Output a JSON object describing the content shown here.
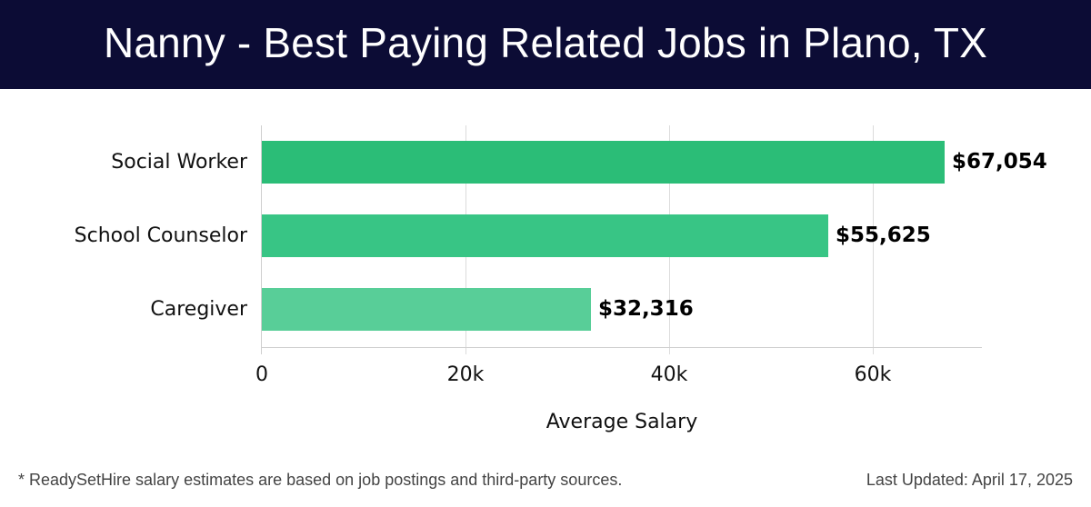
{
  "header": {
    "title": "Nanny - Best Paying Related Jobs in Plano, TX"
  },
  "footer": {
    "note": "* ReadySetHire salary estimates are based on job postings and third-party sources.",
    "updated": "Last Updated: April 17, 2025"
  },
  "colors": {
    "header_bg": "#0c0c35",
    "bar_1": "#2bbd77",
    "bar_2": "#38c585",
    "bar_3": "#58ce98"
  },
  "chart_data": {
    "type": "bar",
    "orientation": "horizontal",
    "title": "Nanny - Best Paying Related Jobs in Plano, TX",
    "categories": [
      "Social Worker",
      "School Counselor",
      "Caregiver"
    ],
    "values": [
      67054,
      55625,
      32316
    ],
    "value_labels": [
      "$67,054",
      "$55,625",
      "$32,316"
    ],
    "xlabel": "Average Salary",
    "ylabel": "",
    "xticks": [
      0,
      20000,
      40000,
      60000
    ],
    "xtick_labels": [
      "0",
      "20k",
      "40k",
      "60k"
    ],
    "xlim": [
      0,
      70700
    ],
    "grid": true,
    "legend": null
  }
}
